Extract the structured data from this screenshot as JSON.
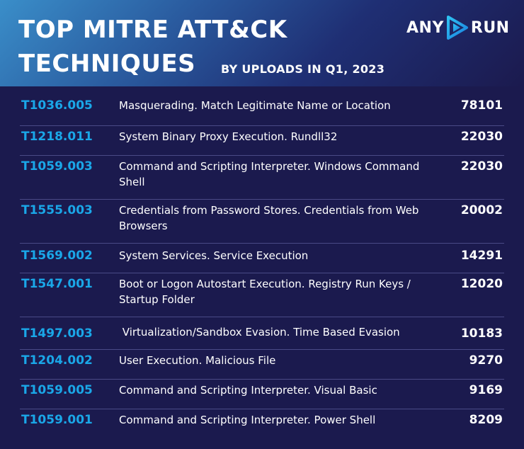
{
  "header": {
    "title_line1": "TOP MITRE ATT&CK",
    "title_line2": "TECHNIQUES",
    "subtitle": "BY UPLOADS IN Q1, 2023",
    "logo_left": "ANY",
    "logo_right": "RUN",
    "logo_icon": "play-triangle-icon"
  },
  "techniques": [
    {
      "code": "T1036.005",
      "description": "Masquerading. Match Legitimate Name or Location",
      "uploads": "78101"
    },
    {
      "code": "T1218.011",
      "description": "System Binary Proxy Execution. Rundll32",
      "uploads": "22030"
    },
    {
      "code": "T1059.003",
      "description": "Command and Scripting Interpreter. Windows Command Shell",
      "uploads": "22030"
    },
    {
      "code": "T1555.003",
      "description": "Credentials from Password Stores. Credentials from Web Browsers",
      "uploads": "20002"
    },
    {
      "code": "T1569.002",
      "description": "System Services. Service Execution",
      "uploads": "14291"
    },
    {
      "code": "T1547.001",
      "description": "Boot or Logon Autostart Execution. Registry Run Keys / Startup Folder",
      "uploads": "12020"
    },
    {
      "code": "T1497.003",
      "description": " Virtualization/Sandbox Evasion. Time Based Evasion",
      "uploads": "10183"
    },
    {
      "code": "T1204.002",
      "description": "User Execution. Malicious File",
      "uploads": "9270"
    },
    {
      "code": "T1059.005",
      "description": "Command and Scripting Interpreter. Visual Basic",
      "uploads": "9169"
    },
    {
      "code": "T1059.001",
      "description": "Command and Scripting Interpreter. Power Shell",
      "uploads": "8209"
    }
  ],
  "colors": {
    "background": "#1b1a4e",
    "code": "#1aa7e8",
    "text": "#ffffff",
    "divider": "#4a4a86",
    "header_gradient_start": "#3a8ec9"
  }
}
